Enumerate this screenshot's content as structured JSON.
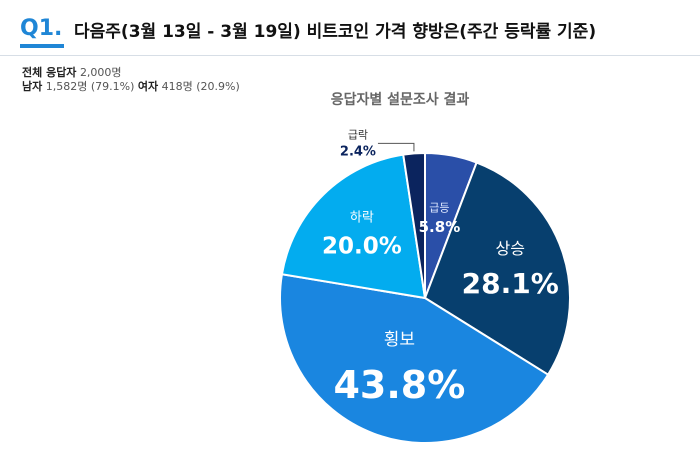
{
  "header": {
    "q_label": "Q1.",
    "title": "다음주(3월 13일 - 3월 19일)  비트코인 가격 향방은(주간 등락률 기준)"
  },
  "respondents": {
    "total_label": "전체 응답자",
    "total_value": "2,000명",
    "male_label": "남자",
    "male_value": "1,582명 (79.1%)",
    "female_label": "여자",
    "female_value": "418명 (20.9%)"
  },
  "colors": {
    "accent": "#1f86d6",
    "급등": "#2a4fa8",
    "상승": "#073f6e",
    "횡보": "#1a86e0",
    "하락": "#03acef",
    "급락": "#0b245e"
  },
  "chart_data": {
    "type": "pie",
    "title": "응답자별 설문조사 결과",
    "start": "12 o'clock, clockwise",
    "slices": [
      {
        "label": "급등",
        "value": 5.8,
        "display": "5.8%"
      },
      {
        "label": "상승",
        "value": 28.1,
        "display": "28.1%"
      },
      {
        "label": "횡보",
        "value": 43.8,
        "display": "43.8%"
      },
      {
        "label": "하락",
        "value": 20.0,
        "display": "20.0%"
      },
      {
        "label": "급락",
        "value": 2.4,
        "display": "2.4%"
      }
    ]
  }
}
